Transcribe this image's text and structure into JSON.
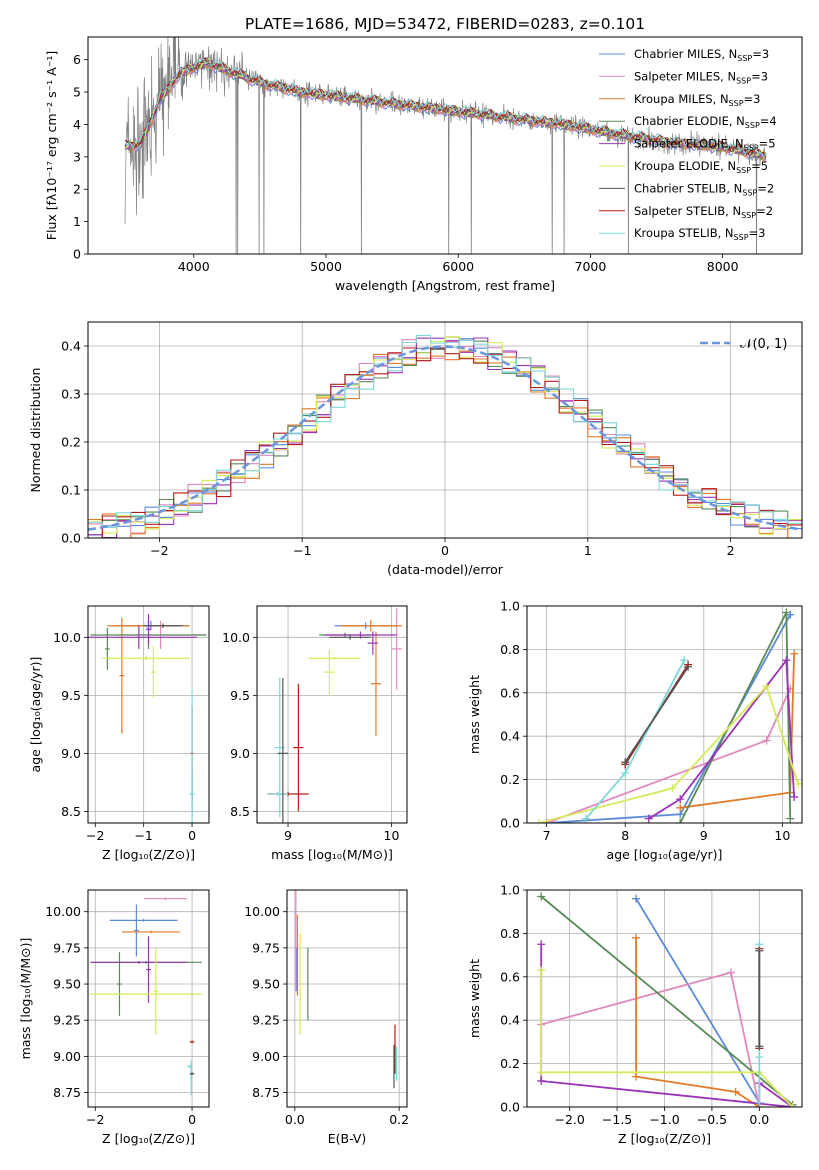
{
  "figure_title": "PLATE=1686, MJD=53472, FIBERID=0283, z=0.101",
  "colors": {
    "chabrier_miles": "#5b8bd6",
    "salpeter_miles": "#e089bf",
    "kroupa_miles": "#e07b27",
    "chabrier_elodie": "#5a8a5a",
    "salpeter_elodie": "#9b33b5",
    "kroupa_elodie": "#d6ea5a",
    "chabrier_stelib": "#555555",
    "salpeter_stelib": "#b01c1c",
    "kroupa_stelib": "#7fd8d8",
    "data": "#808080",
    "normal": "#6b95dc",
    "grid": "#b0b0b0"
  },
  "chart_data": [
    {
      "id": "spectrum",
      "type": "line",
      "xlabel": "wavelength [Angstrom, rest frame]",
      "ylabel": "Flux [fλ10⁻¹⁷ erg cm⁻² s⁻¹ A⁻¹]",
      "xlim": [
        3200,
        8600
      ],
      "ylim": [
        0,
        6.7
      ],
      "xticks": [
        4000,
        5000,
        6000,
        7000,
        8000
      ],
      "yticks": [
        0,
        1,
        2,
        3,
        4,
        5,
        6
      ],
      "grid": false,
      "legend": "top-right",
      "continuum": {
        "wavelength": [
          3450,
          3600,
          3750,
          3900,
          4100,
          4300,
          4500,
          4800,
          5200,
          5600,
          6000,
          6400,
          6800,
          7200,
          7600,
          8000,
          8300
        ],
        "flux": [
          3.3,
          3.4,
          4.8,
          5.6,
          5.9,
          5.6,
          5.3,
          5.0,
          4.8,
          4.6,
          4.4,
          4.2,
          4.0,
          3.7,
          3.45,
          3.3,
          3.05
        ]
      },
      "series": [
        {
          "name": "Chabrier MILES, N",
          "sub": "SSP",
          "suffix": "=3",
          "color_key": "chabrier_miles"
        },
        {
          "name": "Salpeter MILES, N",
          "sub": "SSP",
          "suffix": "=3",
          "color_key": "salpeter_miles"
        },
        {
          "name": "Kroupa MILES, N",
          "sub": "SSP",
          "suffix": "=3",
          "color_key": "kroupa_miles"
        },
        {
          "name": "Chabrier ELODIE, N",
          "sub": "SSP",
          "suffix": "=4",
          "color_key": "chabrier_elodie"
        },
        {
          "name": "Salpeter ELODIE, N",
          "sub": "SSP",
          "suffix": "=5",
          "color_key": "salpeter_elodie"
        },
        {
          "name": "Kroupa ELODIE, N",
          "sub": "SSP",
          "suffix": "=5",
          "color_key": "kroupa_elodie"
        },
        {
          "name": "Chabrier STELIB, N",
          "sub": "SSP",
          "suffix": "=2",
          "color_key": "chabrier_stelib"
        },
        {
          "name": "Salpeter STELIB, N",
          "sub": "SSP",
          "suffix": "=2",
          "color_key": "salpeter_stelib"
        },
        {
          "name": "Kroupa STELIB, N",
          "sub": "SSP",
          "suffix": "=3",
          "color_key": "kroupa_stelib"
        }
      ]
    },
    {
      "id": "residuals",
      "type": "line",
      "xlabel": "(data-model)/error",
      "ylabel": "Normed distribution",
      "xlim": [
        -2.5,
        2.5
      ],
      "ylim": [
        0,
        0.45
      ],
      "xticks": [
        -2,
        -1,
        0,
        1,
        2
      ],
      "yticks": [
        0.0,
        0.1,
        0.2,
        0.3,
        0.4
      ],
      "grid": true,
      "legend": "top-right",
      "legend_label": "𝒩(0, 1)",
      "histogram_bin_width": 0.1,
      "histogram_colors": [
        "chabrier_miles",
        "salpeter_miles",
        "kroupa_miles",
        "chabrier_elodie",
        "salpeter_elodie",
        "kroupa_elodie",
        "salpeter_stelib",
        "kroupa_stelib"
      ]
    },
    {
      "id": "age_vs_z",
      "type": "scatter",
      "xlabel": "Z [log₁₀(Z/Z⊙)]",
      "ylabel": "age  [log₁₀(age/yr)]",
      "xlim": [
        -2.15,
        0.35
      ],
      "ylim": [
        8.4,
        10.27
      ],
      "xticks": [
        -2,
        -1,
        0
      ],
      "yticks": [
        8.5,
        9.0,
        9.5,
        10.0
      ],
      "grid": true,
      "points": [
        {
          "c": "chabrier_miles",
          "x": -0.85,
          "xerr": 0.75,
          "y": 10.1,
          "yerr": 0.04
        },
        {
          "c": "salpeter_miles",
          "x": -0.65,
          "xerr": 0.9,
          "y": 10.02,
          "yerr": 0.12
        },
        {
          "c": "kroupa_miles",
          "x": -0.9,
          "xerr": 0.85,
          "y": 10.1,
          "yerr": 0.05
        },
        {
          "c": "kroupa_miles",
          "x": -1.45,
          "xerr": 0.05,
          "y": 9.67,
          "yerr": 0.5
        },
        {
          "c": "chabrier_elodie",
          "x": -0.9,
          "xerr": 1.2,
          "y": 10.02,
          "yerr": 0.12
        },
        {
          "c": "chabrier_elodie",
          "x": -1.75,
          "xerr": 0.05,
          "y": 9.9,
          "yerr": 0.18
        },
        {
          "c": "salpeter_elodie",
          "x": -1.1,
          "xerr": 1.2,
          "y": 10.0,
          "yerr": 0.1
        },
        {
          "c": "salpeter_elodie",
          "x": -0.9,
          "xerr": 0.05,
          "y": 10.07,
          "yerr": 0.13
        },
        {
          "c": "kroupa_elodie",
          "x": -0.95,
          "xerr": 0.9,
          "y": 9.82,
          "yerr": 0.02
        },
        {
          "c": "kroupa_elodie",
          "x": -0.8,
          "xerr": 0.05,
          "y": 9.7,
          "yerr": 0.22
        },
        {
          "c": "chabrier_stelib",
          "x": -0.6,
          "xerr": 0.4,
          "y": 10.1,
          "yerr": 0.02
        },
        {
          "c": "salpeter_stelib",
          "x": 0.0,
          "xerr": 0.03,
          "y": 9.0,
          "yerr": 0.4
        },
        {
          "c": "chabrier_miles",
          "x": 0.0,
          "xerr": 0.02,
          "y": 8.65,
          "yerr": 0.2
        },
        {
          "c": "kroupa_stelib",
          "x": 0.0,
          "xerr": 0.06,
          "y": 8.65,
          "yerr": 0.9
        }
      ]
    },
    {
      "id": "age_vs_mass",
      "type": "scatter",
      "xlabel": "mass [log₁₀(M/M⊙)]",
      "ylabel": "",
      "xlim": [
        8.7,
        10.15
      ],
      "ylim": [
        8.4,
        10.27
      ],
      "xticks": [
        9,
        10
      ],
      "yticks": [
        8.5,
        9.0,
        9.5,
        10.0
      ],
      "grid": true,
      "points": [
        {
          "c": "chabrier_miles",
          "x": 9.75,
          "xerr": 0.3,
          "y": 10.1,
          "yerr": 0.03
        },
        {
          "c": "salpeter_miles",
          "x": 10.05,
          "xerr": 0.05,
          "y": 9.9,
          "yerr": 0.35
        },
        {
          "c": "kroupa_miles",
          "x": 9.8,
          "xerr": 0.3,
          "y": 10.1,
          "yerr": 0.05
        },
        {
          "c": "kroupa_miles",
          "x": 9.85,
          "xerr": 0.05,
          "y": 9.6,
          "yerr": 0.45
        },
        {
          "c": "chabrier_elodie",
          "x": 9.55,
          "xerr": 0.25,
          "y": 10.02,
          "yerr": 0.02
        },
        {
          "c": "salpeter_elodie",
          "x": 9.7,
          "xerr": 0.35,
          "y": 10.02,
          "yerr": 0.03
        },
        {
          "c": "salpeter_elodie",
          "x": 9.82,
          "xerr": 0.05,
          "y": 9.95,
          "yerr": 0.1
        },
        {
          "c": "kroupa_elodie",
          "x": 9.45,
          "xerr": 0.25,
          "y": 9.82,
          "yerr": 0.01
        },
        {
          "c": "kroupa_elodie",
          "x": 9.4,
          "xerr": 0.05,
          "y": 9.7,
          "yerr": 0.2
        },
        {
          "c": "chabrier_stelib",
          "x": 9.6,
          "xerr": 0.2,
          "y": 10.0,
          "yerr": 0.02
        },
        {
          "c": "salpeter_stelib",
          "x": 9.0,
          "xerr": 0.2,
          "y": 8.65,
          "yerr": 0.02
        },
        {
          "c": "salpeter_stelib",
          "x": 9.1,
          "xerr": 0.05,
          "y": 9.05,
          "yerr": 0.55
        },
        {
          "c": "kroupa_stelib",
          "x": 8.9,
          "xerr": 0.1,
          "y": 8.65,
          "yerr": 0.02
        },
        {
          "c": "kroupa_stelib",
          "x": 8.92,
          "xerr": 0.05,
          "y": 9.05,
          "yerr": 0.6
        },
        {
          "c": "chabrier_stelib",
          "x": 8.95,
          "xerr": 0.05,
          "y": 9.0,
          "yerr": 0.65
        }
      ]
    },
    {
      "id": "weight_vs_age",
      "type": "line",
      "xlabel": "age  [log₁₀(age/yr)]",
      "ylabel": "mass weight",
      "xlim": [
        6.75,
        10.25
      ],
      "ylim": [
        0,
        1.0
      ],
      "xticks": [
        7,
        8,
        9,
        10
      ],
      "yticks": [
        0.0,
        0.2,
        0.4,
        0.6,
        0.8,
        1.0
      ],
      "grid": true,
      "series": [
        {
          "c": "chabrier_miles",
          "x": [
            7.0,
            8.7,
            10.1
          ],
          "y": [
            0.0,
            0.04,
            0.96
          ]
        },
        {
          "c": "salpeter_miles",
          "x": [
            7.0,
            9.8,
            10.1
          ],
          "y": [
            0.0,
            0.38,
            0.62
          ]
        },
        {
          "c": "kroupa_miles",
          "x": [
            8.7,
            10.1,
            10.15
          ],
          "y": [
            0.07,
            0.14,
            0.78
          ]
        },
        {
          "c": "chabrier_elodie",
          "x": [
            8.7,
            10.05,
            10.1
          ],
          "y": [
            0.0,
            0.97,
            0.02
          ]
        },
        {
          "c": "salpeter_elodie",
          "x": [
            8.3,
            8.7,
            10.05,
            10.15
          ],
          "y": [
            0.02,
            0.11,
            0.75,
            0.12
          ]
        },
        {
          "c": "kroupa_elodie",
          "x": [
            6.9,
            8.6,
            9.8,
            10.2
          ],
          "y": [
            0.0,
            0.16,
            0.63,
            0.18
          ]
        },
        {
          "c": "salpeter_stelib",
          "x": [
            8.0,
            8.8
          ],
          "y": [
            0.27,
            0.73
          ]
        },
        {
          "c": "kroupa_stelib",
          "x": [
            7.5,
            8.0,
            8.75
          ],
          "y": [
            0.02,
            0.23,
            0.75
          ]
        },
        {
          "c": "chabrier_stelib",
          "x": [
            8.0,
            8.8
          ],
          "y": [
            0.28,
            0.72
          ]
        }
      ]
    },
    {
      "id": "mass_vs_z",
      "type": "scatter",
      "xlabel": "Z [log₁₀(Z/Z⊙)]",
      "ylabel": "mass [log₁₀(M/M⊙)]",
      "xlim": [
        -2.15,
        0.35
      ],
      "ylim": [
        8.65,
        10.15
      ],
      "xticks": [
        -2,
        0
      ],
      "yticks": [
        8.75,
        9.0,
        9.25,
        9.5,
        9.75,
        10.0
      ],
      "grid": true,
      "points": [
        {
          "c": "chabrier_miles",
          "x": -1.0,
          "xerr": 0.7,
          "y": 9.94,
          "yerr": 0.01
        },
        {
          "c": "chabrier_miles",
          "x": -1.15,
          "xerr": 0.05,
          "y": 9.87,
          "yerr": 0.18
        },
        {
          "c": "salpeter_miles",
          "x": -0.55,
          "xerr": 0.45,
          "y": 10.09,
          "yerr": 0.01
        },
        {
          "c": "kroupa_miles",
          "x": -0.85,
          "xerr": 0.6,
          "y": 9.86,
          "yerr": 0.01
        },
        {
          "c": "chabrier_elodie",
          "x": -0.95,
          "xerr": 1.15,
          "y": 9.65,
          "yerr": 0.01
        },
        {
          "c": "chabrier_elodie",
          "x": -1.5,
          "xerr": 0.05,
          "y": 9.5,
          "yerr": 0.22
        },
        {
          "c": "salpeter_elodie",
          "x": -1.1,
          "xerr": 1.0,
          "y": 9.65,
          "yerr": 0.01
        },
        {
          "c": "salpeter_elodie",
          "x": -0.9,
          "xerr": 0.05,
          "y": 9.6,
          "yerr": 0.23
        },
        {
          "c": "kroupa_elodie",
          "x": -0.95,
          "xerr": 1.15,
          "y": 9.43,
          "yerr": 0.01
        },
        {
          "c": "kroupa_elodie",
          "x": -0.75,
          "xerr": 0.05,
          "y": 9.45,
          "yerr": 0.3
        },
        {
          "c": "salpeter_stelib",
          "x": 0.0,
          "xerr": 0.05,
          "y": 9.1,
          "yerr": 0.01
        },
        {
          "c": "kroupa_stelib",
          "x": -0.05,
          "xerr": 0.05,
          "y": 8.93,
          "yerr": 0.01
        },
        {
          "c": "kroupa_stelib",
          "x": -0.02,
          "xerr": 0.02,
          "y": 8.85,
          "yerr": 0.12
        },
        {
          "c": "chabrier_stelib",
          "x": 0.0,
          "xerr": 0.05,
          "y": 8.88,
          "yerr": 0.01
        }
      ]
    },
    {
      "id": "mass_vs_ebv",
      "type": "scatter",
      "xlabel": "E(B-V)",
      "ylabel": "",
      "xlim": [
        -0.015,
        0.215
      ],
      "ylim": [
        8.65,
        10.15
      ],
      "xticks": [
        0.0,
        0.2
      ],
      "yticks": [
        8.75,
        9.0,
        9.25,
        9.5,
        9.75,
        10.0
      ],
      "grid": true,
      "points": [
        {
          "c": "salpeter_miles",
          "x": 0.002,
          "xerr": 0.0,
          "y": 9.8,
          "yerr": 0.35
        },
        {
          "c": "kroupa_miles",
          "x": 0.005,
          "xerr": 0.0,
          "y": 9.7,
          "yerr": 0.28
        },
        {
          "c": "chabrier_miles",
          "x": 0.004,
          "xerr": 0.0,
          "y": 9.6,
          "yerr": 0.15
        },
        {
          "c": "chabrier_elodie",
          "x": 0.025,
          "xerr": 0.0,
          "y": 9.5,
          "yerr": 0.25
        },
        {
          "c": "kroupa_elodie",
          "x": 0.01,
          "xerr": 0.0,
          "y": 9.5,
          "yerr": 0.35
        },
        {
          "c": "salpeter_stelib",
          "x": 0.192,
          "xerr": 0.0,
          "y": 9.05,
          "yerr": 0.17
        },
        {
          "c": "chabrier_stelib",
          "x": 0.19,
          "xerr": 0.0,
          "y": 8.93,
          "yerr": 0.15
        },
        {
          "c": "kroupa_stelib",
          "x": 0.195,
          "xerr": 0.0,
          "y": 8.95,
          "yerr": 0.12
        }
      ]
    },
    {
      "id": "weight_vs_z",
      "type": "line",
      "xlabel": "Z [log₁₀(Z/Z⊙)]",
      "ylabel": "mass weight",
      "xlim": [
        -2.45,
        0.45
      ],
      "ylim": [
        0,
        1.0
      ],
      "xticks": [
        -2.0,
        -1.5,
        -1.0,
        -0.5,
        0.0
      ],
      "yticks": [
        0.0,
        0.2,
        0.4,
        0.6,
        0.8,
        1.0
      ],
      "grid": true,
      "series": [
        {
          "c": "chabrier_miles",
          "x": [
            -1.3,
            0.0
          ],
          "y": [
            0.96,
            0.02
          ]
        },
        {
          "c": "salpeter_miles",
          "x": [
            -2.3,
            -0.3,
            0.0
          ],
          "y": [
            0.38,
            0.62,
            0.0
          ]
        },
        {
          "c": "kroupa_miles",
          "x": [
            -1.3,
            -1.3,
            -0.25,
            0.0
          ],
          "y": [
            0.78,
            0.14,
            0.07,
            0.0
          ]
        },
        {
          "c": "chabrier_elodie",
          "x": [
            -2.3,
            0.35
          ],
          "y": [
            0.97,
            0.01
          ]
        },
        {
          "c": "salpeter_elodie",
          "x": [
            -2.3,
            -2.3,
            0.35,
            0.0,
            0.0
          ],
          "y": [
            0.75,
            0.12,
            0.0,
            0.11,
            0.02
          ]
        },
        {
          "c": "kroupa_elodie",
          "x": [
            -2.3,
            -2.3,
            0.0,
            0.35
          ],
          "y": [
            0.63,
            0.16,
            0.16,
            0.0
          ]
        },
        {
          "c": "salpeter_stelib",
          "x": [
            0.0,
            0.0
          ],
          "y": [
            0.73,
            0.27
          ]
        },
        {
          "c": "kroupa_stelib",
          "x": [
            0.0,
            0.0,
            0.0
          ],
          "y": [
            0.75,
            0.23,
            0.02
          ]
        },
        {
          "c": "chabrier_stelib",
          "x": [
            0.0,
            0.0
          ],
          "y": [
            0.72,
            0.28
          ]
        }
      ]
    }
  ]
}
